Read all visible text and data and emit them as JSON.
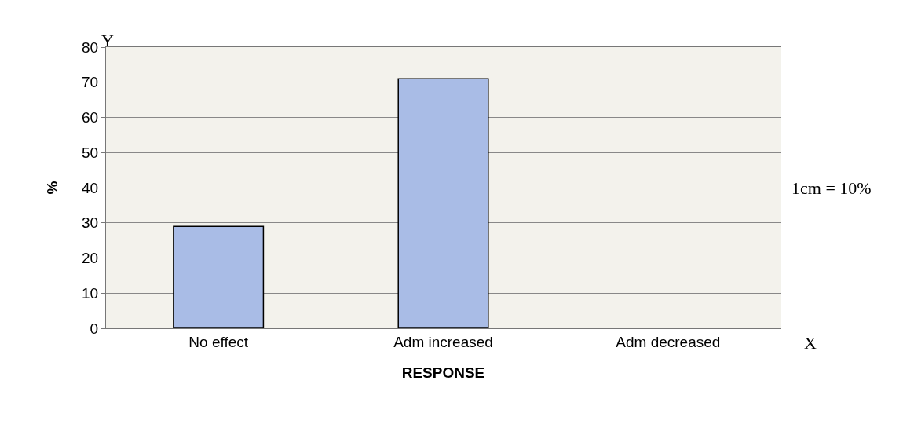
{
  "chart_data": {
    "type": "bar",
    "categories": [
      "No effect",
      "Adm increased",
      "Adm decreased"
    ],
    "values": [
      29,
      71,
      0
    ],
    "color": "#a9bce6",
    "ylim": [
      0,
      80
    ],
    "yticks": [
      0,
      10,
      20,
      30,
      40,
      50,
      60,
      70,
      80
    ],
    "grid": "y",
    "xlabel": "RESPONSE",
    "ylabel": "%",
    "annotations": [
      "Y",
      "X",
      "1cm = 10%"
    ]
  }
}
